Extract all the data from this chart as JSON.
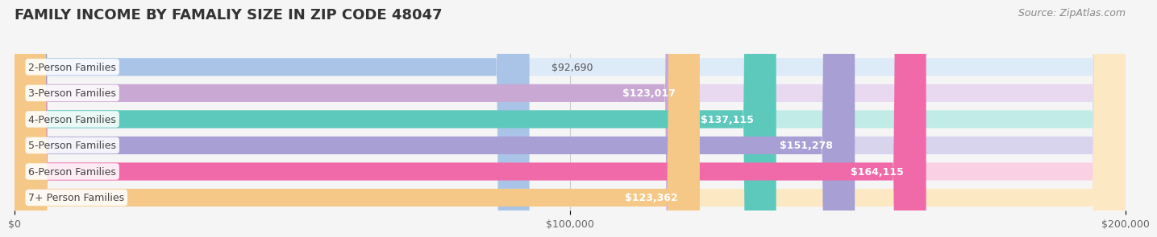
{
  "title": "FAMILY INCOME BY FAMALIY SIZE IN ZIP CODE 48047",
  "source": "Source: ZipAtlas.com",
  "categories": [
    "2-Person Families",
    "3-Person Families",
    "4-Person Families",
    "5-Person Families",
    "6-Person Families",
    "7+ Person Families"
  ],
  "values": [
    92690,
    123017,
    137115,
    151278,
    164115,
    123362
  ],
  "bar_colors": [
    "#aac4e8",
    "#c9a8d4",
    "#5dc8bc",
    "#a89fd4",
    "#f06aaa",
    "#f5c888"
  ],
  "bar_bg_colors": [
    "#ddeaf7",
    "#e8d8f0",
    "#c0ebe7",
    "#d8d4ee",
    "#fad0e4",
    "#fde8c4"
  ],
  "value_labels": [
    "$92,690",
    "$123,017",
    "$137,115",
    "$151,278",
    "$164,115",
    "$123,362"
  ],
  "xlim": [
    0,
    200000
  ],
  "xticks": [
    0,
    100000,
    200000
  ],
  "xtick_labels": [
    "$0",
    "$100,000",
    "$200,000"
  ],
  "background_color": "#f5f5f5",
  "title_fontsize": 13,
  "label_fontsize": 9,
  "value_fontsize": 9,
  "source_fontsize": 9
}
